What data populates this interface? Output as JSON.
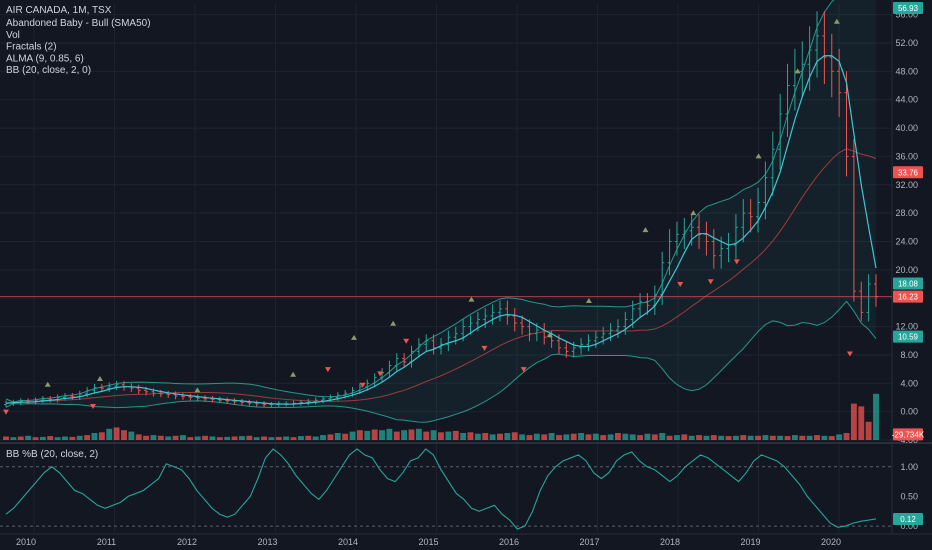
{
  "legend": {
    "title": "AIR CANADA, 1M, TSX",
    "items": [
      "Abandoned Baby - Bull (SMA50)",
      "Vol",
      "Fractals (2)",
      "ALMA (9, 0.85, 6)",
      "BB (20, close, 2, 0)"
    ]
  },
  "sub_legend": "BB %B (20, close, 2)",
  "colors": {
    "background": "#131722",
    "grid": "#1f2330",
    "up": "#26a69a",
    "down": "#ef5350",
    "bb_band": "#2bb5a5",
    "bb_fill": "#26a69a",
    "basis": "#a03a3a",
    "alma": "#3fc6d6",
    "pctb_line": "#26a69a",
    "badge_teal": "#26a69a",
    "badge_red": "#ef5350",
    "fractal_up": "#8a9a6b",
    "fractal_down": "#ef5350",
    "separator": "#2a2e39"
  },
  "chart_data": [
    {
      "type": "candlestick",
      "title": "AIR CANADA, 1M, TSX",
      "x_ticks": [
        "2010",
        "2011",
        "2012",
        "2013",
        "2014",
        "2015",
        "2016",
        "2017",
        "2018",
        "2019",
        "2020"
      ],
      "y_ticks": [
        "-4.00",
        "0.00",
        "4.00",
        "8.00",
        "12.00",
        "16.00",
        "20.00",
        "24.00",
        "28.00",
        "32.00",
        "36.00",
        "40.00",
        "44.00",
        "48.00",
        "52.00",
        "56.00"
      ],
      "ylim": [
        -4.0,
        57.5
      ],
      "price_line": 16.23,
      "badges": [
        {
          "label": "56.93",
          "value": 56.93,
          "color": "#26a69a"
        },
        {
          "label": "33.76",
          "value": 33.76,
          "color": "#ef5350"
        },
        {
          "label": "18.08",
          "value": 18.08,
          "color": "#26a69a"
        },
        {
          "label": "16.23",
          "value": 16.23,
          "color": "#ef5350"
        },
        {
          "label": "10.59",
          "value": 10.59,
          "color": "#26a69a"
        },
        {
          "label": "-29.734K",
          "value": -3.2,
          "color": "#ef5350"
        }
      ],
      "monthly_closes": [
        1.2,
        1.3,
        1.5,
        1.4,
        1.6,
        1.8,
        1.7,
        2.0,
        2.2,
        2.1,
        2.5,
        3.0,
        3.4,
        3.3,
        3.6,
        3.8,
        3.5,
        3.3,
        3.0,
        2.8,
        2.6,
        2.5,
        2.4,
        2.2,
        2.1,
        2.0,
        1.9,
        1.8,
        1.7,
        1.6,
        1.5,
        1.4,
        1.3,
        1.2,
        1.1,
        1.0,
        1.0,
        1.1,
        1.1,
        1.2,
        1.3,
        1.4,
        1.6,
        1.8,
        2.0,
        2.3,
        2.6,
        3.0,
        3.5,
        4.0,
        4.8,
        5.5,
        6.5,
        7.5,
        7.0,
        8.5,
        9.5,
        10.0,
        9.0,
        9.5,
        10.5,
        11.0,
        12.0,
        12.5,
        13.0,
        13.5,
        14.0,
        14.5,
        13.5,
        12.5,
        12.0,
        11.0,
        11.5,
        10.5,
        10.0,
        9.0,
        8.5,
        9.0,
        9.5,
        10.0,
        10.5,
        11.0,
        11.5,
        12.0,
        13.0,
        14.5,
        15.5,
        15.0,
        16.5,
        21.0,
        24.0,
        25.0,
        25.5,
        26.0,
        25.0,
        24.0,
        22.0,
        23.0,
        23.5,
        26.0,
        28.0,
        27.5,
        29.5,
        33.0,
        37.0,
        42.0,
        46.0,
        48.0,
        49.0,
        51.0,
        53.0,
        50.0,
        48.0,
        45.0,
        36.0,
        17.0,
        14.0,
        18.0,
        16.23
      ],
      "fractals_up": [
        {
          "x_frac": 0.048,
          "value": 3.8
        },
        {
          "x_frac": 0.108,
          "value": 4.6
        },
        {
          "x_frac": 0.22,
          "value": 3.0
        },
        {
          "x_frac": 0.33,
          "value": 5.2
        },
        {
          "x_frac": 0.4,
          "value": 10.4
        },
        {
          "x_frac": 0.445,
          "value": 12.4
        },
        {
          "x_frac": 0.535,
          "value": 15.8
        },
        {
          "x_frac": 0.625,
          "value": 10.8
        },
        {
          "x_frac": 0.67,
          "value": 15.6
        },
        {
          "x_frac": 0.735,
          "value": 25.6
        },
        {
          "x_frac": 0.79,
          "value": 28.0
        },
        {
          "x_frac": 0.865,
          "value": 36.0
        },
        {
          "x_frac": 0.91,
          "value": 48.0
        },
        {
          "x_frac": 0.955,
          "value": 55.0
        }
      ],
      "fractals_down": [
        {
          "x_frac": 0.0,
          "value": 0.0
        },
        {
          "x_frac": 0.1,
          "value": 0.8
        },
        {
          "x_frac": 0.37,
          "value": 6.0
        },
        {
          "x_frac": 0.41,
          "value": 3.8
        },
        {
          "x_frac": 0.43,
          "value": 5.4
        },
        {
          "x_frac": 0.46,
          "value": 10.0
        },
        {
          "x_frac": 0.55,
          "value": 9.0
        },
        {
          "x_frac": 0.595,
          "value": 6.0
        },
        {
          "x_frac": 0.775,
          "value": 18.0
        },
        {
          "x_frac": 0.81,
          "value": 18.4
        },
        {
          "x_frac": 0.84,
          "value": 21.2
        },
        {
          "x_frac": 0.97,
          "value": 8.2
        }
      ]
    },
    {
      "type": "bar",
      "title": "Vol",
      "bar_count": 119,
      "values_scaled": [
        0.25,
        0.2,
        0.25,
        0.3,
        0.2,
        0.22,
        0.28,
        0.2,
        0.25,
        0.22,
        0.3,
        0.35,
        0.5,
        0.55,
        0.8,
        0.9,
        0.7,
        0.6,
        0.4,
        0.3,
        0.35,
        0.3,
        0.25,
        0.3,
        0.35,
        0.2,
        0.25,
        0.3,
        0.25,
        0.2,
        0.22,
        0.25,
        0.28,
        0.3,
        0.2,
        0.25,
        0.2,
        0.22,
        0.25,
        0.2,
        0.28,
        0.3,
        0.25,
        0.35,
        0.4,
        0.5,
        0.45,
        0.6,
        0.7,
        0.65,
        0.75,
        0.7,
        0.8,
        0.6,
        0.7,
        0.75,
        0.8,
        0.6,
        0.7,
        0.55,
        0.6,
        0.65,
        0.5,
        0.55,
        0.45,
        0.5,
        0.4,
        0.45,
        0.5,
        0.55,
        0.4,
        0.35,
        0.45,
        0.4,
        0.5,
        0.35,
        0.4,
        0.45,
        0.5,
        0.4,
        0.45,
        0.35,
        0.4,
        0.5,
        0.45,
        0.4,
        0.35,
        0.45,
        0.4,
        0.5,
        0.3,
        0.35,
        0.4,
        0.3,
        0.35,
        0.3,
        0.35,
        0.3,
        0.28,
        0.3,
        0.35,
        0.3,
        0.3,
        0.35,
        0.3,
        0.3,
        0.28,
        0.35,
        0.3,
        0.3,
        0.35,
        0.3,
        0.28,
        0.4,
        0.5,
        2.6,
        2.4,
        1.3,
        3.3
      ],
      "bar_dirs": [
        "d",
        "u",
        "d",
        "u",
        "d",
        "u",
        "d",
        "u",
        "u",
        "d",
        "u",
        "d",
        "u",
        "d",
        "u",
        "d",
        "d",
        "u",
        "d",
        "d",
        "u",
        "d",
        "u",
        "d",
        "u",
        "d",
        "u",
        "d",
        "u",
        "d",
        "u",
        "d",
        "u",
        "d",
        "u",
        "d",
        "u",
        "d",
        "u",
        "d",
        "u",
        "d",
        "u",
        "u",
        "d",
        "u",
        "d",
        "u",
        "d",
        "u",
        "d",
        "u",
        "u",
        "d",
        "u",
        "d",
        "u",
        "d",
        "u",
        "d",
        "u",
        "d",
        "u",
        "d",
        "u",
        "d",
        "u",
        "d",
        "u",
        "d",
        "u",
        "d",
        "u",
        "d",
        "u",
        "d",
        "u",
        "d",
        "u",
        "d",
        "u",
        "d",
        "u",
        "d",
        "u",
        "u",
        "d",
        "u",
        "d",
        "u",
        "d",
        "u",
        "d",
        "u",
        "d",
        "u",
        "d",
        "u",
        "d",
        "u",
        "d",
        "u",
        "d",
        "u",
        "d",
        "u",
        "d",
        "u",
        "d",
        "u",
        "d",
        "u",
        "d",
        "u",
        "d",
        "d",
        "d",
        "d",
        "u"
      ]
    },
    {
      "type": "line",
      "title": "BB %B (20, close, 2)",
      "y_ticks": [
        "0.00",
        "0.50",
        "1.00"
      ],
      "ylim": [
        -0.1,
        1.35
      ],
      "badge": {
        "label": "0.12",
        "value": 0.12,
        "color": "#26a69a"
      },
      "values": [
        0.2,
        0.3,
        0.45,
        0.6,
        0.75,
        0.9,
        1.0,
        0.9,
        0.75,
        0.6,
        0.55,
        0.45,
        0.35,
        0.3,
        0.35,
        0.4,
        0.5,
        0.55,
        0.6,
        0.7,
        0.8,
        1.05,
        1.0,
        0.95,
        0.8,
        0.6,
        0.45,
        0.3,
        0.2,
        0.15,
        0.2,
        0.35,
        0.5,
        0.8,
        1.15,
        1.3,
        1.2,
        1.05,
        0.85,
        0.7,
        0.55,
        0.45,
        0.6,
        0.8,
        1.0,
        1.2,
        1.3,
        1.2,
        1.15,
        0.95,
        0.8,
        0.75,
        0.9,
        1.1,
        1.15,
        1.3,
        1.2,
        0.95,
        0.75,
        0.55,
        0.45,
        0.3,
        0.25,
        0.3,
        0.35,
        0.2,
        0.1,
        -0.05,
        0.0,
        0.25,
        0.6,
        0.85,
        1.0,
        1.1,
        1.15,
        1.2,
        1.1,
        0.9,
        0.8,
        0.9,
        1.1,
        1.2,
        1.25,
        1.1,
        1.0,
        0.95,
        0.85,
        0.75,
        0.85,
        1.0,
        1.1,
        1.2,
        1.15,
        1.05,
        0.95,
        0.85,
        0.75,
        0.9,
        1.1,
        1.2,
        1.15,
        1.1,
        1.0,
        0.85,
        0.7,
        0.5,
        0.35,
        0.2,
        0.05,
        -0.02,
        0.0,
        0.05,
        0.08,
        0.1,
        0.12
      ]
    }
  ]
}
